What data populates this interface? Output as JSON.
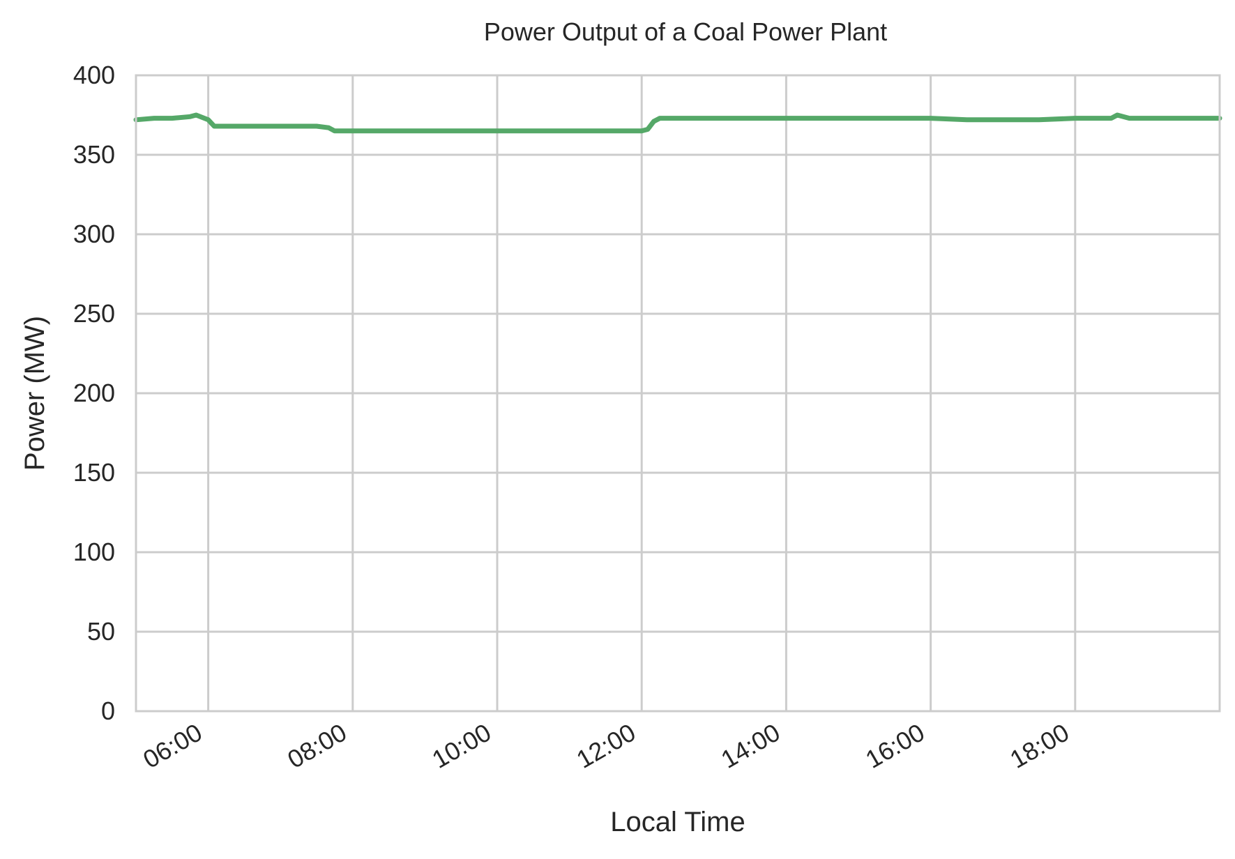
{
  "chart_data": {
    "type": "line",
    "title": "Power Output of a Coal Power Plant",
    "xlabel": "Local Time",
    "ylabel": "Power (MW)",
    "ylim": [
      0,
      400
    ],
    "xlim": [
      "05:00",
      "20:00"
    ],
    "y_ticks": [
      "0",
      "50",
      "100",
      "150",
      "200",
      "250",
      "300",
      "350",
      "400"
    ],
    "x_ticks": [
      "06:00",
      "08:00",
      "10:00",
      "12:00",
      "14:00",
      "16:00",
      "18:00"
    ],
    "grid": true,
    "legend": "none",
    "series": [
      {
        "color": "#55a868",
        "x": [
          "05:00",
          "05:15",
          "05:30",
          "05:45",
          "05:50",
          "06:00",
          "06:05",
          "06:15",
          "06:30",
          "07:00",
          "07:30",
          "07:40",
          "07:45",
          "08:00",
          "08:30",
          "09:00",
          "09:30",
          "10:00",
          "10:30",
          "11:00",
          "11:30",
          "12:00",
          "12:05",
          "12:10",
          "12:15",
          "12:30",
          "13:00",
          "13:30",
          "14:00",
          "14:30",
          "15:00",
          "15:30",
          "16:00",
          "16:30",
          "17:00",
          "17:30",
          "18:00",
          "18:30",
          "18:35",
          "18:45",
          "19:00",
          "19:30",
          "20:00"
        ],
        "y": [
          372,
          373,
          373,
          374,
          375,
          372,
          368,
          368,
          368,
          368,
          368,
          367,
          365,
          365,
          365,
          365,
          365,
          365,
          365,
          365,
          365,
          365,
          366,
          371,
          373,
          373,
          373,
          373,
          373,
          373,
          373,
          373,
          373,
          372,
          372,
          372,
          373,
          373,
          375,
          373,
          373,
          373,
          373
        ]
      }
    ]
  }
}
